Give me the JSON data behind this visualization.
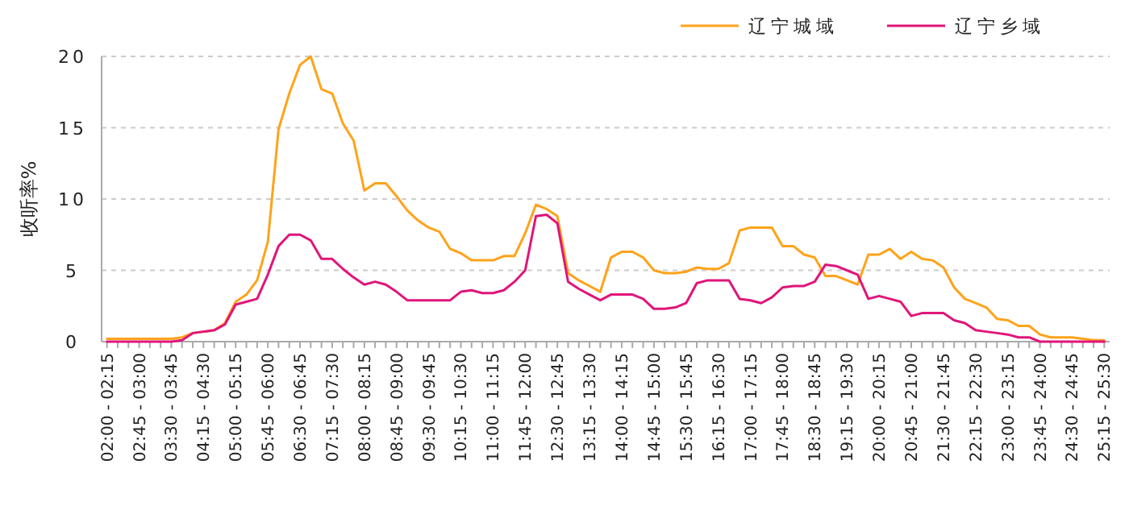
{
  "chart_data": {
    "type": "line",
    "ylabel": "收听率%",
    "ylim": [
      0,
      20
    ],
    "yticks": [
      0,
      5,
      10,
      15,
      20
    ],
    "grid": "y",
    "legend": "top right",
    "categories": [
      "02:00 - 02:15",
      null,
      null,
      "02:45 - 03:00",
      null,
      null,
      "03:30 - 03:45",
      null,
      null,
      "04:15 - 04:30",
      null,
      null,
      "05:00 - 05:15",
      null,
      null,
      "05:45 - 06:00",
      null,
      null,
      "06:30 - 06:45",
      null,
      null,
      "07:15 - 07:30",
      null,
      null,
      "08:00 - 08:15",
      null,
      null,
      "08:45 - 09:00",
      null,
      null,
      "09:30 - 09:45",
      null,
      null,
      "10:15 - 10:30",
      null,
      null,
      "11:00 - 11:15",
      null,
      null,
      "11:45 - 12:00",
      null,
      null,
      "12:30 - 12:45",
      null,
      null,
      "13:15 - 13:30",
      null,
      null,
      "14:00 - 14:15",
      null,
      null,
      "14:45 - 15:00",
      null,
      null,
      "15:30 - 15:45",
      null,
      null,
      "16:15 - 16:30",
      null,
      null,
      "17:00 - 17:15",
      null,
      null,
      "17:45 - 18:00",
      null,
      null,
      "18:30 - 18:45",
      null,
      null,
      "19:15 - 19:30",
      null,
      null,
      "20:00 - 20:15",
      null,
      null,
      "20:45 - 21:00",
      null,
      null,
      "21:30 - 21:45",
      null,
      null,
      "22:15 - 22:30",
      null,
      null,
      "23:00 - 23:15",
      null,
      null,
      "23:45 - 24:00",
      null,
      null,
      "24:30 - 24:45",
      null,
      null,
      "25:15 - 25:30"
    ],
    "series": [
      {
        "name": "辽宁城域",
        "color": "#ffa31a",
        "values": [
          0.2,
          0.2,
          0.2,
          0.2,
          0.2,
          0.2,
          0.2,
          0.3,
          0.6,
          0.7,
          0.8,
          1.3,
          2.8,
          3.3,
          4.3,
          7.0,
          14.9,
          17.4,
          19.4,
          20.0,
          17.7,
          17.4,
          15.3,
          14.1,
          10.6,
          11.1,
          11.1,
          10.2,
          9.2,
          8.5,
          8.0,
          7.7,
          6.5,
          6.2,
          5.7,
          5.7,
          5.7,
          6.0,
          6.0,
          7.6,
          9.6,
          9.3,
          8.8,
          4.8,
          4.3,
          3.9,
          3.5,
          5.9,
          6.3,
          6.3,
          5.9,
          5.0,
          4.8,
          4.8,
          4.9,
          5.2,
          5.1,
          5.1,
          5.5,
          7.8,
          8.0,
          8.0,
          8.0,
          6.7,
          6.7,
          6.1,
          5.9,
          4.6,
          4.6,
          4.3,
          4.0,
          6.1,
          6.1,
          6.5,
          5.8,
          6.3,
          5.8,
          5.7,
          5.2,
          3.8,
          3.0,
          2.7,
          2.4,
          1.6,
          1.5,
          1.1,
          1.1,
          0.5,
          0.3,
          0.3,
          0.3,
          0.2,
          0.1,
          0.1
        ]
      },
      {
        "name": "辽宁乡域",
        "color": "#e0157a",
        "values": [
          0,
          0,
          0,
          0,
          0,
          0,
          0,
          0.1,
          0.6,
          0.7,
          0.8,
          1.2,
          2.6,
          2.8,
          3.0,
          4.7,
          6.7,
          7.5,
          7.5,
          7.1,
          5.8,
          5.8,
          5.1,
          4.5,
          4.0,
          4.2,
          4.0,
          3.5,
          2.9,
          2.9,
          2.9,
          2.9,
          2.9,
          3.5,
          3.6,
          3.4,
          3.4,
          3.6,
          4.2,
          5.0,
          8.8,
          8.9,
          8.3,
          4.2,
          3.7,
          3.3,
          2.9,
          3.3,
          3.3,
          3.3,
          3.0,
          2.3,
          2.3,
          2.4,
          2.7,
          4.1,
          4.3,
          4.3,
          4.3,
          3.0,
          2.9,
          2.7,
          3.1,
          3.8,
          3.9,
          3.9,
          4.2,
          5.4,
          5.3,
          5.0,
          4.7,
          3.0,
          3.2,
          3.0,
          2.8,
          1.8,
          2.0,
          2.0,
          2.0,
          1.5,
          1.3,
          0.8,
          0.7,
          0.6,
          0.5,
          0.3,
          0.3,
          0,
          0,
          0,
          0,
          0,
          0,
          0
        ]
      }
    ]
  }
}
